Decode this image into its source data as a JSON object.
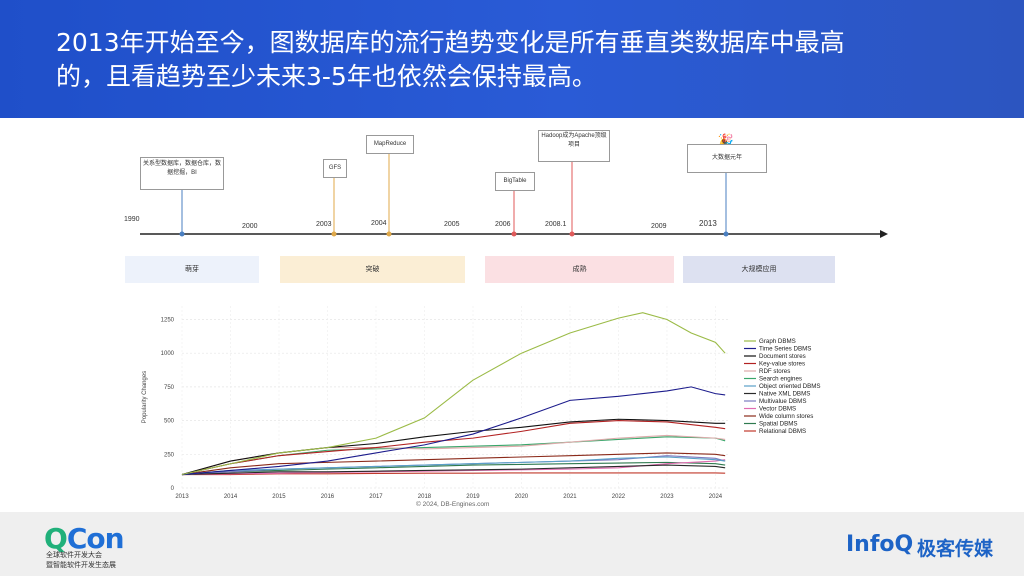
{
  "slide": {
    "title_line1": "2013年开始至今，图数据库的流行趋势变化是所有垂直类数据库中最高",
    "title_line2": "的，且看趋势至少未来3-5年也依然会保持最高。"
  },
  "timeline": {
    "years": [
      "1990",
      "2000",
      "2003",
      "2004",
      "2005",
      "2006",
      "2008.1",
      "2009",
      "2013"
    ],
    "events": [
      {
        "label": "关系型数据库，数据仓库，数据挖掘，BI",
        "color": "#4a7fc1"
      },
      {
        "label": "GFS",
        "color": "#e0a94a"
      },
      {
        "label": "MapReduce",
        "color": "#e0a94a"
      },
      {
        "label": "BigTable",
        "color": "#e05a5a"
      },
      {
        "label": "Hadoop成为Apache顶级项目",
        "color": "#e05a5a"
      },
      {
        "label": "大数据元年",
        "color": "#4a7fc1"
      }
    ],
    "phases": [
      {
        "label": "萌芽",
        "color": "#edf2fb"
      },
      {
        "label": "突破",
        "color": "#fbeed5"
      },
      {
        "label": "成熟",
        "color": "#fbe0e3"
      },
      {
        "label": "大规模应用",
        "color": "#dde1f1"
      }
    ]
  },
  "chart_data": {
    "type": "line",
    "ylabel": "Popularity Changes",
    "x_ticks": [
      "2013",
      "2014",
      "2015",
      "2016",
      "2017",
      "2018",
      "2019",
      "2020",
      "2021",
      "2022",
      "2023",
      "2024"
    ],
    "y_ticks": [
      "0",
      "250",
      "500",
      "750",
      "1000",
      "1250"
    ],
    "ylim": [
      0,
      1350
    ],
    "xlim": [
      2013,
      2024.3
    ],
    "credit": "© 2024, DB-Engines.com",
    "legend_position": "right",
    "series": [
      {
        "name": "Graph DBMS",
        "color": "#9bbb47",
        "x": [
          2013,
          2014,
          2015,
          2016,
          2017,
          2018,
          2019,
          2020,
          2021,
          2022,
          2022.5,
          2023,
          2023.5,
          2024,
          2024.2
        ],
        "y": [
          100,
          180,
          260,
          300,
          370,
          520,
          800,
          1000,
          1150,
          1260,
          1300,
          1250,
          1150,
          1080,
          1000
        ]
      },
      {
        "name": "Time Series DBMS",
        "color": "#1c1c8c",
        "x": [
          2013,
          2014,
          2015,
          2016,
          2017,
          2018,
          2019,
          2020,
          2021,
          2022,
          2023,
          2023.5,
          2024,
          2024.2
        ],
        "y": [
          100,
          130,
          160,
          200,
          260,
          320,
          400,
          520,
          650,
          680,
          720,
          750,
          700,
          690
        ]
      },
      {
        "name": "Document stores",
        "color": "#111111",
        "x": [
          2013,
          2014,
          2015,
          2016,
          2017,
          2018,
          2019,
          2020,
          2021,
          2022,
          2023,
          2024,
          2024.2
        ],
        "y": [
          100,
          200,
          260,
          300,
          330,
          380,
          420,
          450,
          490,
          510,
          500,
          480,
          480
        ]
      },
      {
        "name": "Key-value stores",
        "color": "#b22222",
        "x": [
          2013,
          2014,
          2015,
          2016,
          2017,
          2018,
          2019,
          2020,
          2021,
          2022,
          2023,
          2024,
          2024.2
        ],
        "y": [
          100,
          180,
          240,
          270,
          300,
          340,
          370,
          420,
          480,
          500,
          490,
          450,
          440
        ]
      },
      {
        "name": "RDF stores",
        "color": "#ddaaaa",
        "x": [
          2013,
          2014,
          2015,
          2016,
          2017,
          2018,
          2019,
          2020,
          2021,
          2022,
          2023,
          2024,
          2024.2
        ],
        "y": [
          100,
          200,
          260,
          300,
          300,
          290,
          300,
          310,
          340,
          370,
          390,
          370,
          360
        ]
      },
      {
        "name": "Search engines",
        "color": "#3aa66b",
        "x": [
          2013,
          2014,
          2015,
          2016,
          2017,
          2018,
          2019,
          2020,
          2021,
          2022,
          2023,
          2024,
          2024.2
        ],
        "y": [
          100,
          180,
          240,
          280,
          290,
          300,
          310,
          320,
          340,
          360,
          380,
          370,
          350
        ]
      },
      {
        "name": "Object oriented DBMS",
        "color": "#5aa0c8",
        "x": [
          2013,
          2014,
          2015,
          2016,
          2017,
          2018,
          2019,
          2020,
          2021,
          2022,
          2023,
          2024,
          2024.2
        ],
        "y": [
          100,
          130,
          140,
          150,
          160,
          170,
          180,
          190,
          200,
          220,
          230,
          210,
          200
        ]
      },
      {
        "name": "Native XML DBMS",
        "color": "#2a2a2a",
        "x": [
          2013,
          2014,
          2015,
          2016,
          2017,
          2018,
          2019,
          2020,
          2021,
          2022,
          2023,
          2024,
          2024.2
        ],
        "y": [
          100,
          110,
          120,
          120,
          125,
          130,
          135,
          140,
          150,
          160,
          170,
          160,
          150
        ]
      },
      {
        "name": "Multivalue DBMS",
        "color": "#7a7abf",
        "x": [
          2013,
          2014,
          2015,
          2016,
          2017,
          2018,
          2019,
          2020,
          2021,
          2022,
          2023,
          2024,
          2024.2
        ],
        "y": [
          100,
          120,
          140,
          150,
          160,
          170,
          180,
          190,
          200,
          210,
          240,
          220,
          200
        ]
      },
      {
        "name": "Vector DBMS",
        "color": "#e06bb0",
        "x": [
          2013,
          2014,
          2015,
          2016,
          2017,
          2018,
          2019,
          2020,
          2021,
          2022,
          2023,
          2024,
          2024.2
        ],
        "y": [
          100,
          105,
          110,
          115,
          120,
          125,
          130,
          135,
          140,
          150,
          180,
          200,
          210
        ]
      },
      {
        "name": "Wide column stores",
        "color": "#8b2a1a",
        "x": [
          2013,
          2014,
          2015,
          2016,
          2017,
          2018,
          2019,
          2020,
          2021,
          2022,
          2023,
          2024,
          2024.2
        ],
        "y": [
          100,
          150,
          180,
          190,
          200,
          210,
          220,
          230,
          240,
          250,
          260,
          250,
          240
        ]
      },
      {
        "name": "Spatial DBMS",
        "color": "#2f7a4f",
        "x": [
          2013,
          2014,
          2015,
          2016,
          2017,
          2018,
          2019,
          2020,
          2021,
          2022,
          2023,
          2024,
          2024.2
        ],
        "y": [
          100,
          120,
          130,
          140,
          150,
          160,
          170,
          175,
          180,
          185,
          190,
          180,
          170
        ]
      },
      {
        "name": "Relational DBMS",
        "color": "#c0392b",
        "x": [
          2013,
          2014,
          2015,
          2016,
          2017,
          2018,
          2019,
          2020,
          2021,
          2022,
          2023,
          2024,
          2024.2
        ],
        "y": [
          100,
          100,
          105,
          105,
          108,
          110,
          110,
          112,
          112,
          112,
          112,
          112,
          110
        ]
      }
    ]
  },
  "footer": {
    "qcon_q": "Q",
    "qcon_rest": "Con",
    "qcon_line1": "全球软件开发大会",
    "qcon_line2": "暨智能软件开发生态展",
    "infoq": "InfoQ",
    "infoq_cn": "极客传媒"
  }
}
